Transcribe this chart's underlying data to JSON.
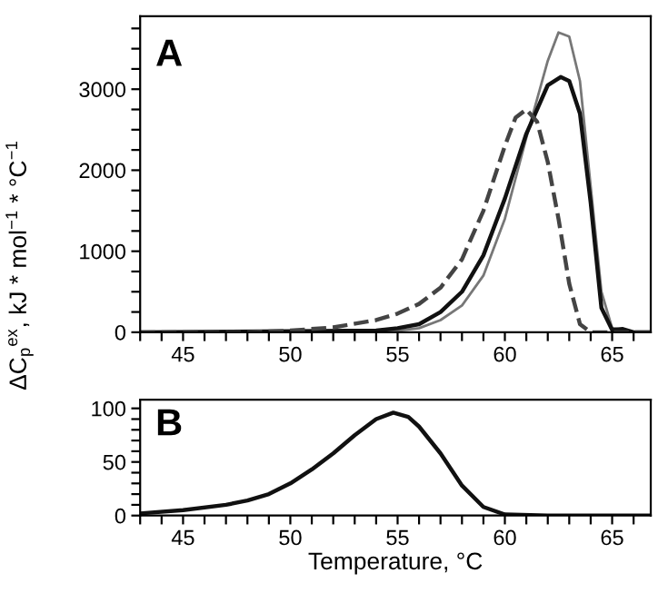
{
  "chart_data": [
    {
      "type": "line",
      "annotations": [
        "A"
      ],
      "ylabel": "ΔC$_{p}$$^{ex}$, kJ * mol$^{−1}$ * °C$^{−1}$",
      "xlim": [
        43,
        66.8
      ],
      "ylim": [
        0,
        3900
      ],
      "xticks": [
        {
          "value": 43,
          "label": null
        },
        {
          "value": 44,
          "label": null
        },
        45,
        {
          "value": 46,
          "label": null
        },
        {
          "value": 47,
          "label": null
        },
        {
          "value": 48,
          "label": null
        },
        {
          "value": 49,
          "label": null
        },
        50,
        {
          "value": 51,
          "label": null
        },
        {
          "value": 52,
          "label": null
        },
        {
          "value": 53,
          "label": null
        },
        {
          "value": 54,
          "label": null
        },
        55,
        {
          "value": 56,
          "label": null
        },
        {
          "value": 57,
          "label": null
        },
        {
          "value": 58,
          "label": null
        },
        {
          "value": 59,
          "label": null
        },
        60,
        {
          "value": 61,
          "label": null
        },
        {
          "value": 62,
          "label": null
        },
        {
          "value": 63,
          "label": null
        },
        {
          "value": 64,
          "label": null
        },
        65,
        {
          "value": 66,
          "label": null
        }
      ],
      "yticks": [
        0,
        {
          "value": 250,
          "label": null
        },
        {
          "value": 500,
          "label": null
        },
        {
          "value": 750,
          "label": null
        },
        1000,
        {
          "value": 1250,
          "label": null
        },
        {
          "value": 1500,
          "label": null
        },
        {
          "value": 1750,
          "label": null
        },
        2000,
        {
          "value": 2250,
          "label": null
        },
        {
          "value": 2500,
          "label": null
        },
        {
          "value": 2750,
          "label": null
        },
        3000,
        {
          "value": 3250,
          "label": null
        },
        {
          "value": 3500,
          "label": null
        },
        {
          "value": 3750,
          "label": null
        }
      ],
      "series": [
        {
          "color": "#777777",
          "line_style": "solid",
          "x": [
            43,
            50,
            55,
            56,
            57,
            58,
            59,
            60,
            61,
            62,
            62.5,
            63,
            63.5,
            64,
            64.5,
            65,
            65.5,
            66,
            66.8
          ],
          "values": [
            0,
            0,
            20,
            50,
            150,
            330,
            700,
            1400,
            2400,
            3350,
            3700,
            3650,
            3100,
            1800,
            500,
            50,
            30,
            0,
            0
          ]
        },
        {
          "color": "#111111",
          "line_style": "solid",
          "x": [
            43,
            54,
            55,
            56,
            57,
            58,
            59,
            60,
            61,
            62,
            62.6,
            63,
            63.5,
            64,
            64.5,
            65,
            65.5,
            66,
            66.8
          ],
          "values": [
            0,
            20,
            50,
            100,
            250,
            500,
            950,
            1650,
            2450,
            3050,
            3150,
            3100,
            2700,
            1600,
            300,
            30,
            40,
            0,
            0
          ]
        },
        {
          "color": "#444444",
          "line_style": "dashed",
          "x": [
            43,
            48,
            50,
            52,
            54,
            55,
            56,
            57,
            58,
            59,
            60,
            60.5,
            61,
            61.5,
            62,
            62.5,
            63,
            63.5,
            64,
            66.8
          ],
          "values": [
            0,
            0,
            20,
            60,
            150,
            230,
            350,
            550,
            900,
            1500,
            2300,
            2650,
            2750,
            2600,
            2100,
            1400,
            600,
            100,
            0,
            0
          ]
        }
      ]
    },
    {
      "type": "line",
      "annotations": [
        "B"
      ],
      "xlabel": "Temperature, °C",
      "xlim": [
        43,
        66.8
      ],
      "ylim": [
        0,
        108
      ],
      "xticks": [
        {
          "value": 43,
          "label": null
        },
        {
          "value": 44,
          "label": null
        },
        45,
        {
          "value": 46,
          "label": null
        },
        {
          "value": 47,
          "label": null
        },
        {
          "value": 48,
          "label": null
        },
        {
          "value": 49,
          "label": null
        },
        50,
        {
          "value": 51,
          "label": null
        },
        {
          "value": 52,
          "label": null
        },
        {
          "value": 53,
          "label": null
        },
        {
          "value": 54,
          "label": null
        },
        55,
        {
          "value": 56,
          "label": null
        },
        {
          "value": 57,
          "label": null
        },
        {
          "value": 58,
          "label": null
        },
        {
          "value": 59,
          "label": null
        },
        60,
        {
          "value": 61,
          "label": null
        },
        {
          "value": 62,
          "label": null
        },
        {
          "value": 63,
          "label": null
        },
        {
          "value": 64,
          "label": null
        },
        65,
        {
          "value": 66,
          "label": null
        }
      ],
      "yticks": [
        0,
        {
          "value": 10,
          "label": null
        },
        {
          "value": 20,
          "label": null
        },
        {
          "value": 30,
          "label": null
        },
        {
          "value": 40,
          "label": null
        },
        50,
        {
          "value": 60,
          "label": null
        },
        {
          "value": 70,
          "label": null
        },
        {
          "value": 80,
          "label": null
        },
        {
          "value": 90,
          "label": null
        },
        100
      ],
      "series": [
        {
          "color": "#111111",
          "line_style": "solid",
          "x": [
            43,
            45,
            47,
            48,
            49,
            50,
            51,
            52,
            53,
            54,
            54.8,
            55.5,
            56,
            57,
            58,
            59,
            60,
            62,
            66.8
          ],
          "values": [
            2,
            5,
            10,
            14,
            20,
            30,
            43,
            58,
            75,
            90,
            96,
            92,
            83,
            58,
            28,
            8,
            1,
            0,
            0
          ]
        }
      ]
    }
  ]
}
